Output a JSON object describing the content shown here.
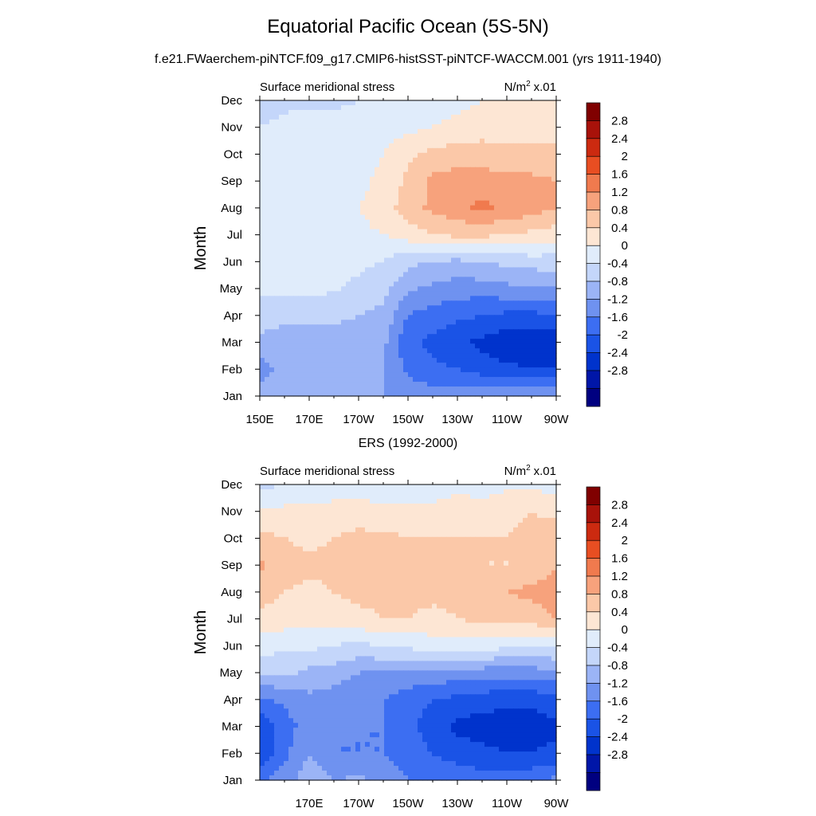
{
  "header": {
    "title": "Equatorial Pacific Ocean (5S-5N)",
    "subtitle": "f.e21.FWaerchem-piNTCF.f09_g17.CMIP6-histSST-piNTCF-WACCM.001 (yrs 1911-1940)",
    "panel2_title": "ERS (1992-2000)"
  },
  "chart_data": [
    {
      "type": "heatmap",
      "left_label": "Surface meridional stress",
      "units_label": "N/m",
      "units_sup": "2",
      "units_scale": "x.01",
      "ylabel": "Month",
      "months": [
        "Jan",
        "Feb",
        "Mar",
        "Apr",
        "May",
        "Jun",
        "Jul",
        "Aug",
        "Sep",
        "Oct",
        "Nov",
        "Dec"
      ],
      "lon_ticks": [
        "150E",
        "170E",
        "170W",
        "150W",
        "130W",
        "110W",
        "90W"
      ],
      "lon_range": [
        150,
        270
      ],
      "legend_levels": [
        "2.8",
        "2.4",
        "2",
        "1.6",
        "1.2",
        "0.8",
        "0.4",
        "0",
        "-0.4",
        "-0.8",
        "-1.2",
        "-1.6",
        "-2",
        "-2.4",
        "-2.8"
      ],
      "colors": [
        "#000080",
        "#0016a8",
        "#0033cc",
        "#1a53e6",
        "#3c6ef2",
        "#6f92f0",
        "#9bb4f6",
        "#c4d6fa",
        "#e0ecfb",
        "#fde6d4",
        "#fbc8a8",
        "#f7a27c",
        "#f07a4e",
        "#e84e22",
        "#cc2a10",
        "#a8120a",
        "#800000"
      ],
      "values": [
        [
          -0.6,
          -0.6,
          -0.8,
          -0.8,
          -0.8,
          -0.8,
          -1.0,
          -1.0,
          -1.0,
          -0.9,
          -0.9,
          -0.8,
          -0.8
        ],
        [
          -1.0,
          -0.6,
          -0.6,
          -0.7,
          -0.7,
          -0.8,
          -1.3,
          -1.5,
          -1.6,
          -1.8,
          -1.9,
          -2.0,
          -2.0
        ],
        [
          -0.5,
          -0.6,
          -0.6,
          -0.6,
          -0.6,
          -0.7,
          -1.5,
          -1.7,
          -1.9,
          -2.1,
          -2.3,
          -2.4,
          -2.3
        ],
        [
          -0.2,
          -0.3,
          -0.3,
          -0.3,
          -0.4,
          -0.5,
          -1.2,
          -1.4,
          -1.5,
          -1.6,
          -1.7,
          -1.7,
          -1.6
        ],
        [
          0.1,
          0.1,
          0.1,
          0.05,
          -0.1,
          -0.3,
          -0.7,
          -0.9,
          -1.0,
          -1.0,
          -0.9,
          -0.9,
          -0.8
        ],
        [
          0.1,
          0.1,
          0.1,
          0.1,
          0.1,
          0.0,
          -0.3,
          -0.4,
          -0.5,
          -0.4,
          -0.3,
          -0.2,
          -0.2
        ],
        [
          0.2,
          0.2,
          0.2,
          0.2,
          0.3,
          0.4,
          0.6,
          0.8,
          0.9,
          0.9,
          0.8,
          0.7,
          0.6
        ],
        [
          0.2,
          0.2,
          0.2,
          0.25,
          0.4,
          0.6,
          1.0,
          1.3,
          1.45,
          1.7,
          1.5,
          1.4,
          1.2
        ],
        [
          0.2,
          0.2,
          0.2,
          0.2,
          0.3,
          0.5,
          0.9,
          1.3,
          1.4,
          1.4,
          1.3,
          1.3,
          1.2
        ],
        [
          0.2,
          0.2,
          0.2,
          0.2,
          0.2,
          0.4,
          0.7,
          0.9,
          1.0,
          1.0,
          0.9,
          0.9,
          0.9
        ],
        [
          0.0,
          0.1,
          0.2,
          0.2,
          0.2,
          0.2,
          0.3,
          0.4,
          0.5,
          0.6,
          0.6,
          0.6,
          0.7
        ],
        [
          -0.2,
          -0.1,
          -0.1,
          -0.1,
          0.0,
          0.1,
          0.1,
          0.2,
          0.3,
          0.4,
          0.4,
          0.4,
          0.5
        ]
      ]
    },
    {
      "type": "heatmap",
      "left_label": "Surface meridional stress",
      "units_label": "N/m",
      "units_sup": "2",
      "units_scale": "x.01",
      "ylabel": "Month",
      "months": [
        "Jan",
        "Feb",
        "Mar",
        "Apr",
        "May",
        "Jun",
        "Jul",
        "Aug",
        "Sep",
        "Oct",
        "Nov",
        "Dec"
      ],
      "lon_ticks": [
        "170E",
        "170W",
        "150W",
        "130W",
        "110W",
        "90W"
      ],
      "lon_range": [
        150,
        270
      ],
      "legend_levels": [
        "2.8",
        "2.4",
        "2",
        "1.6",
        "1.2",
        "0.8",
        "0.4",
        "0",
        "-0.4",
        "-0.8",
        "-1.2",
        "-1.6",
        "-2",
        "-2.4",
        "-2.8"
      ],
      "colors": [
        "#000080",
        "#0016a8",
        "#0033cc",
        "#1a53e6",
        "#3c6ef2",
        "#6f92f0",
        "#9bb4f6",
        "#c4d6fa",
        "#e0ecfb",
        "#fde6d4",
        "#fbc8a8",
        "#f7a27c",
        "#f07a4e",
        "#e84e22",
        "#cc2a10",
        "#a8120a",
        "#800000"
      ],
      "values": [
        [
          -1.2,
          -1.0,
          -0.5,
          -0.8,
          -0.7,
          -0.9,
          -1.2,
          -1.3,
          -1.3,
          -1.4,
          -1.4,
          -1.3,
          -1.1
        ],
        [
          -2.0,
          -1.3,
          -0.8,
          -1.2,
          -1.2,
          -1.2,
          -1.4,
          -1.6,
          -1.8,
          -1.9,
          -2.0,
          -2.0,
          -1.9
        ],
        [
          -1.9,
          -1.4,
          -1.0,
          -1.2,
          -1.2,
          -1.2,
          -1.5,
          -1.8,
          -2.1,
          -2.2,
          -2.2,
          -2.2,
          -2.1
        ],
        [
          -1.3,
          -1.1,
          -0.9,
          -1.0,
          -1.1,
          -1.2,
          -1.4,
          -1.6,
          -1.7,
          -1.8,
          -1.9,
          -1.9,
          -1.7
        ],
        [
          -0.4,
          -0.3,
          -0.5,
          -0.6,
          -0.8,
          -0.8,
          -0.9,
          -0.9,
          -1.0,
          -1.0,
          -1.0,
          -1.0,
          -0.9
        ],
        [
          0.2,
          0.1,
          0.1,
          0.0,
          -0.1,
          0.0,
          0.1,
          0.2,
          0.2,
          0.2,
          0.1,
          0.0,
          0.1
        ],
        [
          0.7,
          0.6,
          0.5,
          0.6,
          0.7,
          0.8,
          0.8,
          0.7,
          0.8,
          0.9,
          0.9,
          1.0,
          1.2
        ],
        [
          1.0,
          0.8,
          0.7,
          0.8,
          0.9,
          0.9,
          0.9,
          0.9,
          0.9,
          1.0,
          1.2,
          1.3,
          1.4
        ],
        [
          1.3,
          1.0,
          0.9,
          0.9,
          1.0,
          0.9,
          0.9,
          0.9,
          0.9,
          0.8,
          0.8,
          0.9,
          1.2
        ],
        [
          0.9,
          0.8,
          0.7,
          0.8,
          0.9,
          0.9,
          0.8,
          0.8,
          0.8,
          0.8,
          0.8,
          0.9,
          1.0
        ],
        [
          0.5,
          0.5,
          0.5,
          0.6,
          0.6,
          0.5,
          0.5,
          0.5,
          0.6,
          0.6,
          0.7,
          0.8,
          0.7
        ],
        [
          -0.1,
          0.0,
          0.1,
          0.1,
          0.1,
          0.2,
          0.2,
          0.2,
          0.3,
          0.2,
          0.3,
          0.3,
          0.2
        ]
      ]
    }
  ]
}
